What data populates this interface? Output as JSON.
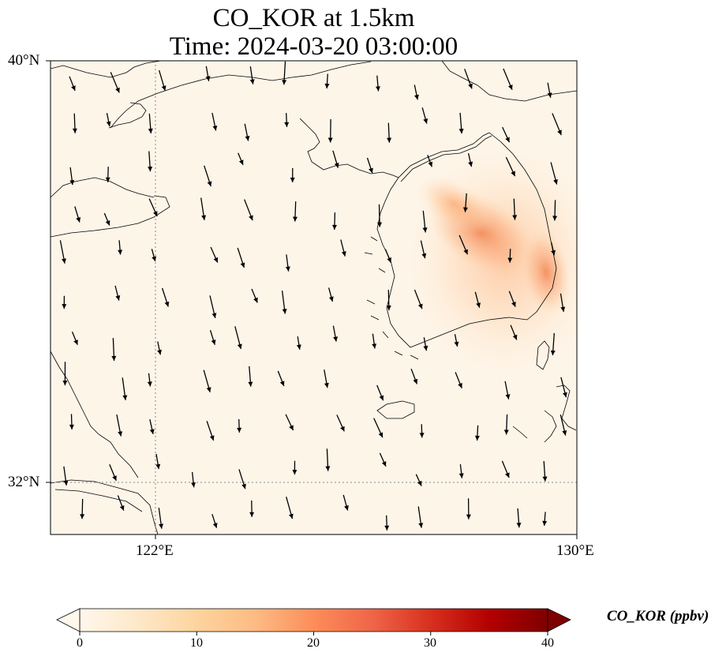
{
  "title": {
    "line1": "CO_KOR at 1.5km",
    "line2": "Time: 2024-03-20 03:00:00"
  },
  "map": {
    "variable": "CO_KOR",
    "level": "1.5km",
    "projection": "lat-lon",
    "background_color": "#fef5e9",
    "coastline_color": "#000000",
    "gridline_style": "dotted",
    "gridline_color": "#888888",
    "extent": {
      "lon_min": 119.5,
      "lon_max": 130.0,
      "lat_min": 31.0,
      "lat_max": 40.0
    },
    "lat_ticks": [
      {
        "value": 40,
        "label": "40°N"
      },
      {
        "value": 32,
        "label": "32°N"
      }
    ],
    "lon_ticks": [
      {
        "value": 122,
        "label": "122°E"
      },
      {
        "value": 130,
        "label": "130°E"
      }
    ],
    "plume": {
      "description_region": "Korean Peninsula",
      "peak_ppbv": 15,
      "color_hex": "#fca262"
    },
    "wind_vectors": {
      "glyph": "arrow",
      "color": "#000000",
      "prevailing_direction": "toward south-southeast"
    }
  },
  "colorbar": {
    "label": "CO_KOR (ppbv)",
    "min": 0,
    "max": 40,
    "ticks": [
      "0",
      "10",
      "20",
      "30",
      "40"
    ],
    "extend": "both",
    "colormap": "OrRd",
    "colors": [
      "#fff7ec",
      "#fee8c8",
      "#fdd49e",
      "#fdbb84",
      "#fc8d59",
      "#ef6548",
      "#d7301f",
      "#b30000",
      "#7f0000"
    ]
  }
}
